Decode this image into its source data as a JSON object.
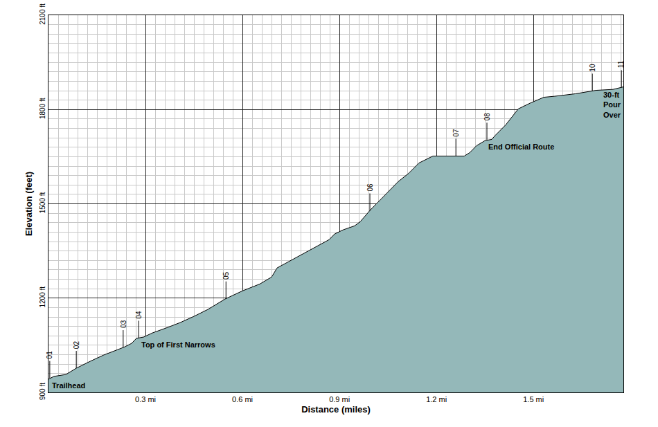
{
  "chart_data": {
    "type": "area",
    "color": "#94b8b9",
    "grid": true,
    "x_label": "Distance (miles)",
    "y_label": "Elevation (feet)",
    "xlim": [
      0,
      1.778
    ],
    "ylim": [
      900,
      2100
    ],
    "xticks": [
      {
        "value": 0.3,
        "label": "0.3 mi"
      },
      {
        "value": 0.6,
        "label": "0.6 mi"
      },
      {
        "value": 0.9,
        "label": "0.9 mi"
      },
      {
        "value": 1.2,
        "label": "1.2 mi"
      },
      {
        "value": 1.5,
        "label": "1.5 mi"
      }
    ],
    "yticks": [
      {
        "value": 900,
        "label": "900 ft"
      },
      {
        "value": 1200,
        "label": "1200 ft"
      },
      {
        "value": 1500,
        "label": "1500 ft"
      },
      {
        "value": 1800,
        "label": "1800 ft"
      },
      {
        "value": 2100,
        "label": "2100 ft"
      }
    ],
    "x": [
      0,
      0.017,
      0.054,
      0.086,
      0.129,
      0.171,
      0.214,
      0.236,
      0.257,
      0.272,
      0.294,
      0.321,
      0.364,
      0.407,
      0.45,
      0.493,
      0.546,
      0.6,
      0.654,
      0.69,
      0.707,
      0.75,
      0.814,
      0.868,
      0.885,
      0.911,
      0.947,
      0.964,
      0.996,
      1.039,
      1.082,
      1.114,
      1.146,
      1.189,
      1.204,
      1.286,
      1.303,
      1.324,
      1.35,
      1.371,
      1.382,
      1.414,
      1.453,
      1.489,
      1.532,
      1.564,
      1.629,
      1.693,
      1.746,
      1.778
    ],
    "values": [
      942,
      951,
      957,
      977,
      999,
      1019,
      1036,
      1045,
      1056,
      1072,
      1076,
      1089,
      1105,
      1122,
      1142,
      1164,
      1197,
      1223,
      1245,
      1267,
      1296,
      1320,
      1355,
      1386,
      1404,
      1417,
      1430,
      1443,
      1481,
      1525,
      1571,
      1597,
      1630,
      1652,
      1652,
      1652,
      1663,
      1685,
      1701,
      1705,
      1718,
      1751,
      1802,
      1820,
      1839,
      1842,
      1850,
      1861,
      1864,
      1872
    ],
    "waypoints": [
      {
        "label": "01",
        "x": 0.004,
        "y": 945
      },
      {
        "label": "02",
        "x": 0.086,
        "y": 977
      },
      {
        "label": "03",
        "x": 0.231,
        "y": 1043
      },
      {
        "label": "04",
        "x": 0.279,
        "y": 1073
      },
      {
        "label": "05",
        "x": 0.549,
        "y": 1198
      },
      {
        "label": "06",
        "x": 0.994,
        "y": 1478
      },
      {
        "label": "07",
        "x": 1.26,
        "y": 1652
      },
      {
        "label": "08",
        "x": 1.356,
        "y": 1703
      },
      {
        "label": "10",
        "x": 1.682,
        "y": 1859
      },
      {
        "label": "11",
        "x": 1.772,
        "y": 1870
      }
    ],
    "annotations": [
      {
        "text": [
          "Trailhead"
        ],
        "x": 0.006,
        "y": 922
      },
      {
        "text": [
          "Top of First Narrows"
        ],
        "x": 0.283,
        "y": 1052
      },
      {
        "text": [
          "End Official Route"
        ],
        "x": 1.356,
        "y": 1681
      },
      {
        "text": [
          "30-ft",
          "Pour",
          "Over"
        ],
        "x": 1.712,
        "y": 1815
      }
    ]
  }
}
